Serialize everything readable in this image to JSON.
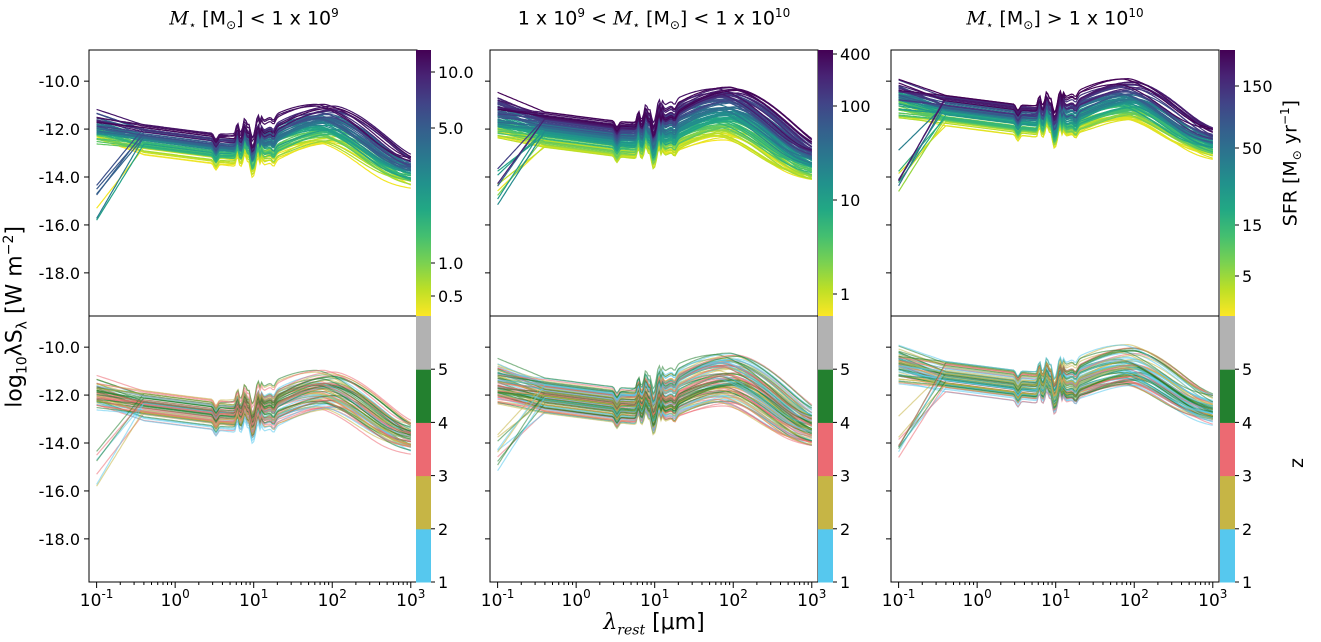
{
  "figure": {
    "ylabel": "log10λSλ [W m−2]",
    "xlabel": "λrest [μm]"
  },
  "columns": [
    {
      "title": "M⋆ [M⊙] < 1 x 10^9"
    },
    {
      "title": "1 x 10^9 < M⋆ [M⊙] < 1 x 10^10"
    },
    {
      "title": "M⋆ [M⊙] > 1 x 10^10"
    }
  ],
  "colorbars": {
    "sfr": [
      {
        "ticks": [
          "10.0",
          "5.0",
          "1.0",
          "0.5"
        ]
      },
      {
        "ticks": [
          "400",
          "100",
          "10",
          "1"
        ]
      },
      {
        "ticks": [
          "150",
          "50",
          "15",
          "5"
        ]
      }
    ],
    "z": {
      "ticks": [
        "1",
        "2",
        "3",
        "4",
        "5"
      ],
      "colors": [
        "#56c8ee",
        "#c6b545",
        "#ec6a72",
        "#23802f",
        "#b2b2b2"
      ]
    },
    "sfr_label": "SFR [M⊙ yr−1]",
    "z_label": "z"
  },
  "chart_data": {
    "type": "line",
    "x_axis": {
      "label": "λrest [μm]",
      "scale": "log",
      "range": [
        0.08,
        1200
      ],
      "ticks": [
        "10−1",
        "100",
        "101",
        "102",
        "103"
      ]
    },
    "y_axis": {
      "label": "log10λSλ [W m−2]",
      "range": [
        -19.8,
        -8.7
      ],
      "ticks": [
        "-10.0",
        "-12.0",
        "-14.0",
        "-16.0",
        "-18.0"
      ]
    },
    "panels": [
      {
        "row": "SFR",
        "column": 1,
        "color_by": "SFR",
        "sfr_range": [
          0.3,
          15
        ],
        "n_curves": 70,
        "median_sed": {
          "uv": -11.8,
          "optical": -12.4,
          "fir_peak": -11.8
        }
      },
      {
        "row": "SFR",
        "column": 2,
        "color_by": "SFR",
        "sfr_range": [
          0.5,
          500
        ],
        "n_curves": 100,
        "median_sed": {
          "uv": -11.6,
          "optical": -12.0,
          "fir_peak": -11.3
        }
      },
      {
        "row": "SFR",
        "column": 3,
        "color_by": "SFR",
        "sfr_range": [
          2,
          220
        ],
        "n_curves": 80,
        "median_sed": {
          "uv": -11.2,
          "optical": -11.2,
          "fir_peak": -10.8
        }
      },
      {
        "row": "z",
        "column": 1,
        "color_by": "z",
        "z_range": [
          1,
          5
        ],
        "n_curves": 70
      },
      {
        "row": "z",
        "column": 2,
        "color_by": "z",
        "z_range": [
          1,
          5
        ],
        "n_curves": 100
      },
      {
        "row": "z",
        "column": 3,
        "color_by": "z",
        "z_range": [
          1,
          5
        ],
        "n_curves": 80
      }
    ]
  }
}
